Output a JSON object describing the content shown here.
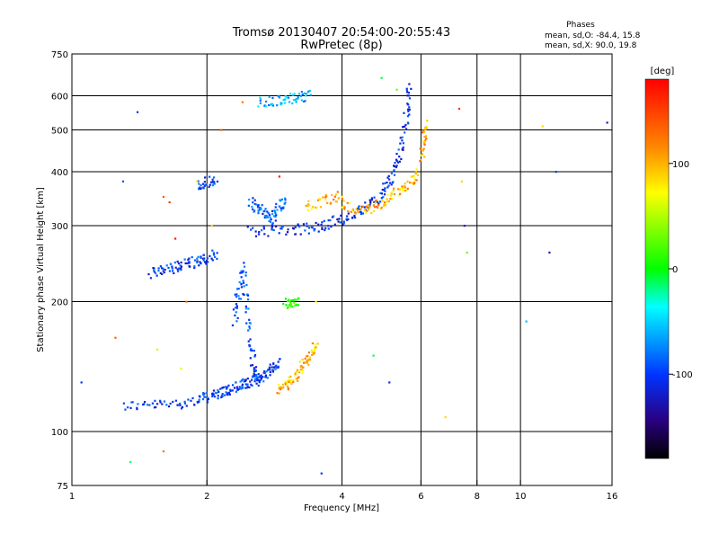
{
  "chart_data": {
    "type": "scatter",
    "title": "Tromsø 20130407 20:54:00-20:55:43",
    "subtitle": "RwPretec (8p)",
    "xlabel": "Frequency [MHz]",
    "ylabel": "Stationary phase Virtual Height [km]",
    "x_scale": "log",
    "y_scale": "log",
    "xlim": [
      1,
      16
    ],
    "ylim": [
      75,
      750
    ],
    "x_ticks": [
      1,
      2,
      4,
      6,
      8,
      10,
      16
    ],
    "x_tick_labels": [
      "1",
      "2",
      "4",
      "6",
      "8",
      "10",
      "16"
    ],
    "y_ticks": [
      75,
      100,
      200,
      300,
      400,
      500,
      600,
      750
    ],
    "y_tick_labels": [
      "75",
      "100",
      "200",
      "300",
      "400",
      "500",
      "600",
      "750"
    ],
    "grid": true,
    "phases_box": {
      "title": "Phases",
      "line1": "mean, sd,O: -84.4, 15.8",
      "line2": "mean, sd,X:  90.0, 19.8"
    },
    "colorbar": {
      "label": "[deg]",
      "range": [
        -180,
        180
      ],
      "ticks": [
        100,
        0,
        -100
      ],
      "tick_labels": [
        "100",
        "0",
        "-100"
      ],
      "colors": [
        "#ff0000",
        "#ffff00",
        "#00ff00",
        "#00ffff",
        "#0000ff",
        "#000000"
      ]
    },
    "traces": [
      {
        "name": "E-layer O",
        "f": [
          1.3,
          1.5,
          1.7,
          1.9,
          2.0,
          2.1,
          2.2,
          2.3,
          2.4,
          2.5,
          2.6,
          2.7,
          2.8,
          2.9
        ],
        "h": [
          115,
          115,
          116,
          118,
          120,
          122,
          124,
          126,
          128,
          130,
          133,
          136,
          140,
          145
        ],
        "phase": -100
      },
      {
        "name": "E-layer cusp",
        "f": [
          2.3,
          2.35,
          2.4,
          2.45,
          2.5,
          2.55,
          2.6
        ],
        "h": [
          180,
          210,
          240,
          200,
          160,
          140,
          128
        ],
        "phase": -95
      },
      {
        "name": "E-layer X",
        "f": [
          2.9,
          3.0,
          3.1,
          3.2,
          3.3,
          3.4,
          3.5
        ],
        "h": [
          125,
          128,
          132,
          138,
          144,
          150,
          160
        ],
        "phase": 110
      },
      {
        "name": "Es patch",
        "f": [
          3.0,
          3.1,
          3.2
        ],
        "h": [
          198,
          200,
          202
        ],
        "phase": 20
      },
      {
        "name": "F1 lower",
        "f": [
          1.5,
          1.6,
          1.7,
          1.8,
          1.9,
          2.0,
          2.1
        ],
        "h": [
          232,
          236,
          240,
          244,
          248,
          252,
          258
        ],
        "phase": -100
      },
      {
        "name": "F1 upper",
        "f": [
          1.9,
          2.0,
          2.1
        ],
        "h": [
          370,
          378,
          385
        ],
        "phase": -100
      },
      {
        "name": "F-layer O",
        "f": [
          2.5,
          2.8,
          3.1,
          3.4,
          3.7,
          4.0,
          4.3,
          4.6,
          4.9,
          5.1,
          5.3,
          5.5,
          5.6,
          5.65
        ],
        "h": [
          290,
          292,
          293,
          296,
          302,
          310,
          320,
          335,
          355,
          380,
          420,
          480,
          560,
          630
        ],
        "phase": -105
      },
      {
        "name": "F-layer O scatter",
        "f": [
          2.5,
          2.6,
          2.7,
          2.8,
          2.9,
          3.0
        ],
        "h": [
          340,
          330,
          320,
          310,
          335,
          340
        ],
        "phase": -90
      },
      {
        "name": "F-layer X",
        "f": [
          3.3,
          3.6,
          3.9,
          4.2,
          4.5,
          4.8,
          5.1,
          5.4,
          5.7,
          5.9
        ],
        "h": [
          330,
          340,
          350,
          330,
          325,
          335,
          350,
          365,
          380,
          400
        ],
        "phase": 110
      },
      {
        "name": "F-layer X cusp",
        "f": [
          6.0,
          6.1,
          6.2
        ],
        "h": [
          430,
          480,
          520
        ],
        "phase": 115
      },
      {
        "name": "high trace",
        "f": [
          2.6,
          2.8,
          3.0,
          3.2,
          3.4
        ],
        "h": [
          580,
          585,
          590,
          595,
          600
        ],
        "phase": -60
      }
    ],
    "noise_points": {
      "f": [
        1.05,
        1.25,
        1.3,
        1.4,
        1.55,
        1.6,
        1.65,
        1.7,
        1.8,
        1.9,
        2.15,
        2.4,
        2.9,
        3.5,
        4.9,
        5.1,
        5.3,
        7.3,
        7.4,
        7.5,
        7.6,
        10.3,
        11.2,
        11.6,
        12.0,
        15.6,
        1.6,
        1.35,
        1.75,
        2.05,
        4.7,
        6.8,
        3.6
      ],
      "h": [
        130,
        165,
        380,
        550,
        155,
        350,
        340,
        280,
        200,
        380,
        500,
        580,
        390,
        200,
        660,
        130,
        620,
        560,
        380,
        300,
        260,
        180,
        510,
        260,
        400,
        520,
        90,
        85,
        140,
        300,
        150,
        108,
        80
      ],
      "phase": [
        -100,
        140,
        -90,
        -100,
        70,
        140,
        160,
        170,
        130,
        80,
        140,
        130,
        170,
        90,
        -10,
        -110,
        40,
        160,
        100,
        -120,
        40,
        -60,
        100,
        -120,
        -100,
        -120,
        130,
        -20,
        80,
        100,
        -10,
        100,
        -100
      ]
    }
  }
}
